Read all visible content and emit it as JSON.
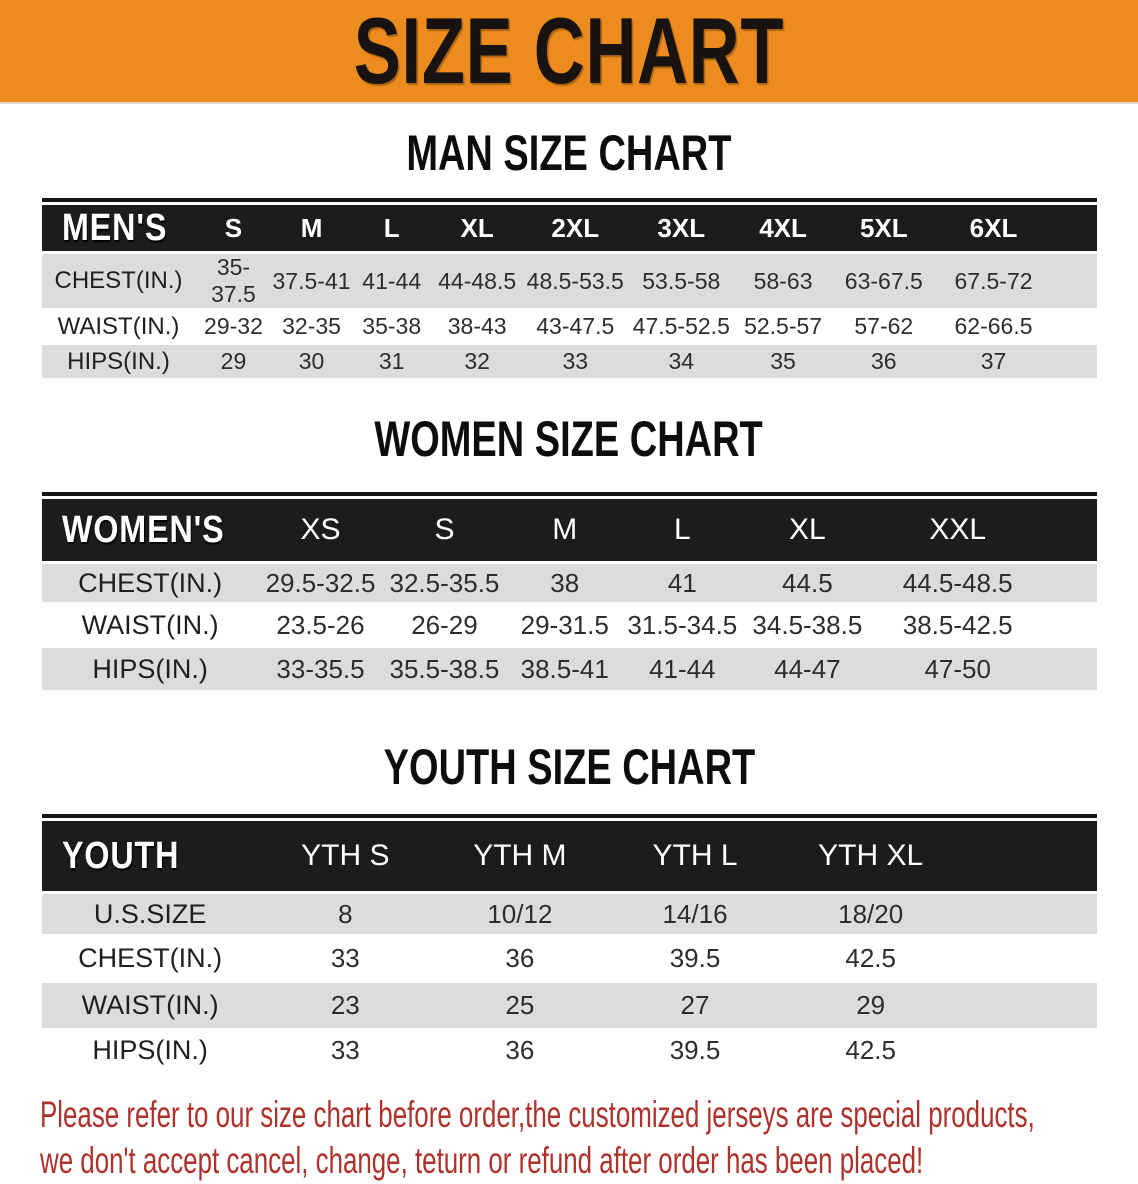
{
  "banner": {
    "title": "SIZE CHART"
  },
  "sections": [
    {
      "heading": "MAN SIZE CHART",
      "label": "MEN'S",
      "columns": [
        "S",
        "M",
        "L",
        "XL",
        "2XL",
        "3XL",
        "4XL",
        "5XL",
        "6XL"
      ],
      "rows": [
        {
          "label": "CHEST(IN.)",
          "values": [
            "35-37.5",
            "37.5-41",
            "41-44",
            "44-48.5",
            "48.5-53.5",
            "53.5-58",
            "58-63",
            "63-67.5",
            "67.5-72"
          ]
        },
        {
          "label": "WAIST(IN.)",
          "values": [
            "29-32",
            "32-35",
            "35-38",
            "38-43",
            "43-47.5",
            "47.5-52.5",
            "52.5-57",
            "57-62",
            "62-66.5"
          ]
        },
        {
          "label": "HIPS(IN.)",
          "values": [
            "29",
            "30",
            "31",
            "32",
            "33",
            "34",
            "35",
            "36",
            "37"
          ]
        }
      ]
    },
    {
      "heading": "WOMEN SIZE CHART",
      "label": "WOMEN'S",
      "columns": [
        "XS",
        "S",
        "M",
        "L",
        "XL",
        "XXL"
      ],
      "rows": [
        {
          "label": "CHEST(IN.)",
          "values": [
            "29.5-32.5",
            "32.5-35.5",
            "38",
            "41",
            "44.5",
            "44.5-48.5"
          ]
        },
        {
          "label": "WAIST(IN.)",
          "values": [
            "23.5-26",
            "26-29",
            "29-31.5",
            "31.5-34.5",
            "34.5-38.5",
            "38.5-42.5"
          ]
        },
        {
          "label": "HIPS(IN.)",
          "values": [
            "33-35.5",
            "35.5-38.5",
            "38.5-41",
            "41-44",
            "44-47",
            "47-50"
          ]
        }
      ]
    },
    {
      "heading": "YOUTH SIZE CHART",
      "label": "YOUTH",
      "columns": [
        "YTH S",
        "YTH M",
        "YTH L",
        "YTH XL"
      ],
      "rows": [
        {
          "label": "U.S.SIZE",
          "values": [
            "8",
            "10/12",
            "14/16",
            "18/20"
          ]
        },
        {
          "label": "CHEST(IN.)",
          "values": [
            "33",
            "36",
            "39.5",
            "42.5"
          ]
        },
        {
          "label": "WAIST(IN.)",
          "values": [
            "23",
            "25",
            "27",
            "29"
          ]
        },
        {
          "label": "HIPS(IN.)",
          "values": [
            "33",
            "36",
            "39.5",
            "42.5"
          ]
        }
      ]
    }
  ],
  "disclaimer": {
    "line1": "Please refer to our size chart before order,the customized jerseys are special products,",
    "line2": "we don't accept cancel, change, teturn or refund after order has been placed!"
  },
  "colors": {
    "banner_bg": "#EC8B1E",
    "table_header_bg": "#1E1B1B",
    "row_stripe": "#DCDCDC",
    "disclaimer_text": "#AE322A"
  }
}
